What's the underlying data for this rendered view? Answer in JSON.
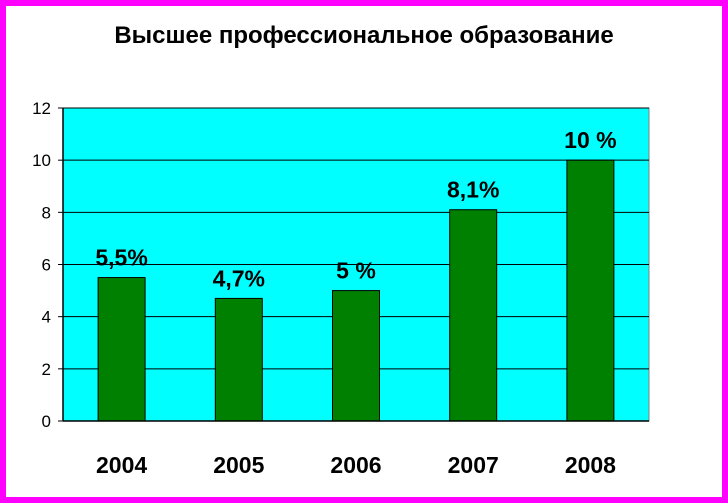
{
  "chart_data": {
    "type": "bar",
    "title": "Высшее профессиональное образование",
    "categories": [
      "2004",
      "2005",
      "2006",
      "2007",
      "2008"
    ],
    "values": [
      5.5,
      4.7,
      5.0,
      8.1,
      10.0
    ],
    "data_labels": [
      "5,5%",
      "4,7%",
      "5 %",
      "8,1%",
      "10 %"
    ],
    "y_ticks": [
      "0",
      "2",
      "4",
      "6",
      "8",
      "10",
      "12"
    ],
    "ylim": [
      0,
      12
    ],
    "xlabel": "",
    "ylabel": "",
    "grid": true,
    "legend": "none",
    "colors": {
      "bar": "#008000",
      "plot_background": "#00ffff",
      "frame_border": "#ff00ff"
    }
  }
}
